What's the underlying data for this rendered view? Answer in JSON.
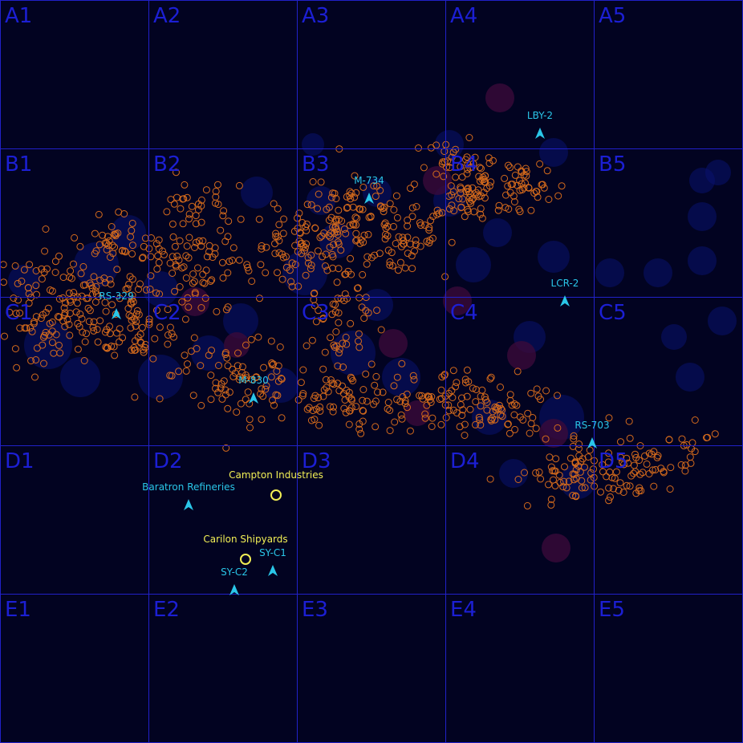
{
  "colors": {
    "background": "#020321",
    "grid_line": "#2121c8",
    "cell_label": "#1c1fd4",
    "asteroid": "#d46a1c",
    "nebula_blue": "#0a1270",
    "nebula_red": "#3a0a3a",
    "gate": "#2ac6e8",
    "station": "#f2ef55"
  },
  "grid": {
    "rows": [
      "A",
      "B",
      "C",
      "D",
      "E"
    ],
    "columns": [
      "1",
      "2",
      "3",
      "4",
      "5"
    ]
  },
  "jump_gates": [
    {
      "label": "LBY-2",
      "icon": "arrow-up-icon"
    },
    {
      "label": "M-734",
      "icon": "arrow-up-icon"
    },
    {
      "label": "LCR-2",
      "icon": "arrow-up-icon"
    },
    {
      "label": "RS-329",
      "icon": "arrow-up-icon"
    },
    {
      "label": "M-830",
      "icon": "arrow-up-icon"
    },
    {
      "label": "RS-703",
      "icon": "arrow-up-icon"
    },
    {
      "label": "Baratron Refineries",
      "icon": "arrow-up-icon"
    },
    {
      "label": "SY-C1",
      "icon": "arrow-up-icon"
    },
    {
      "label": "SY-C2",
      "icon": "arrow-up-icon"
    }
  ],
  "stations": [
    {
      "label": "Campton Industries",
      "icon": "station-ring-icon"
    },
    {
      "label": "Carilon Shipyards",
      "icon": "station-ring-icon"
    }
  ]
}
